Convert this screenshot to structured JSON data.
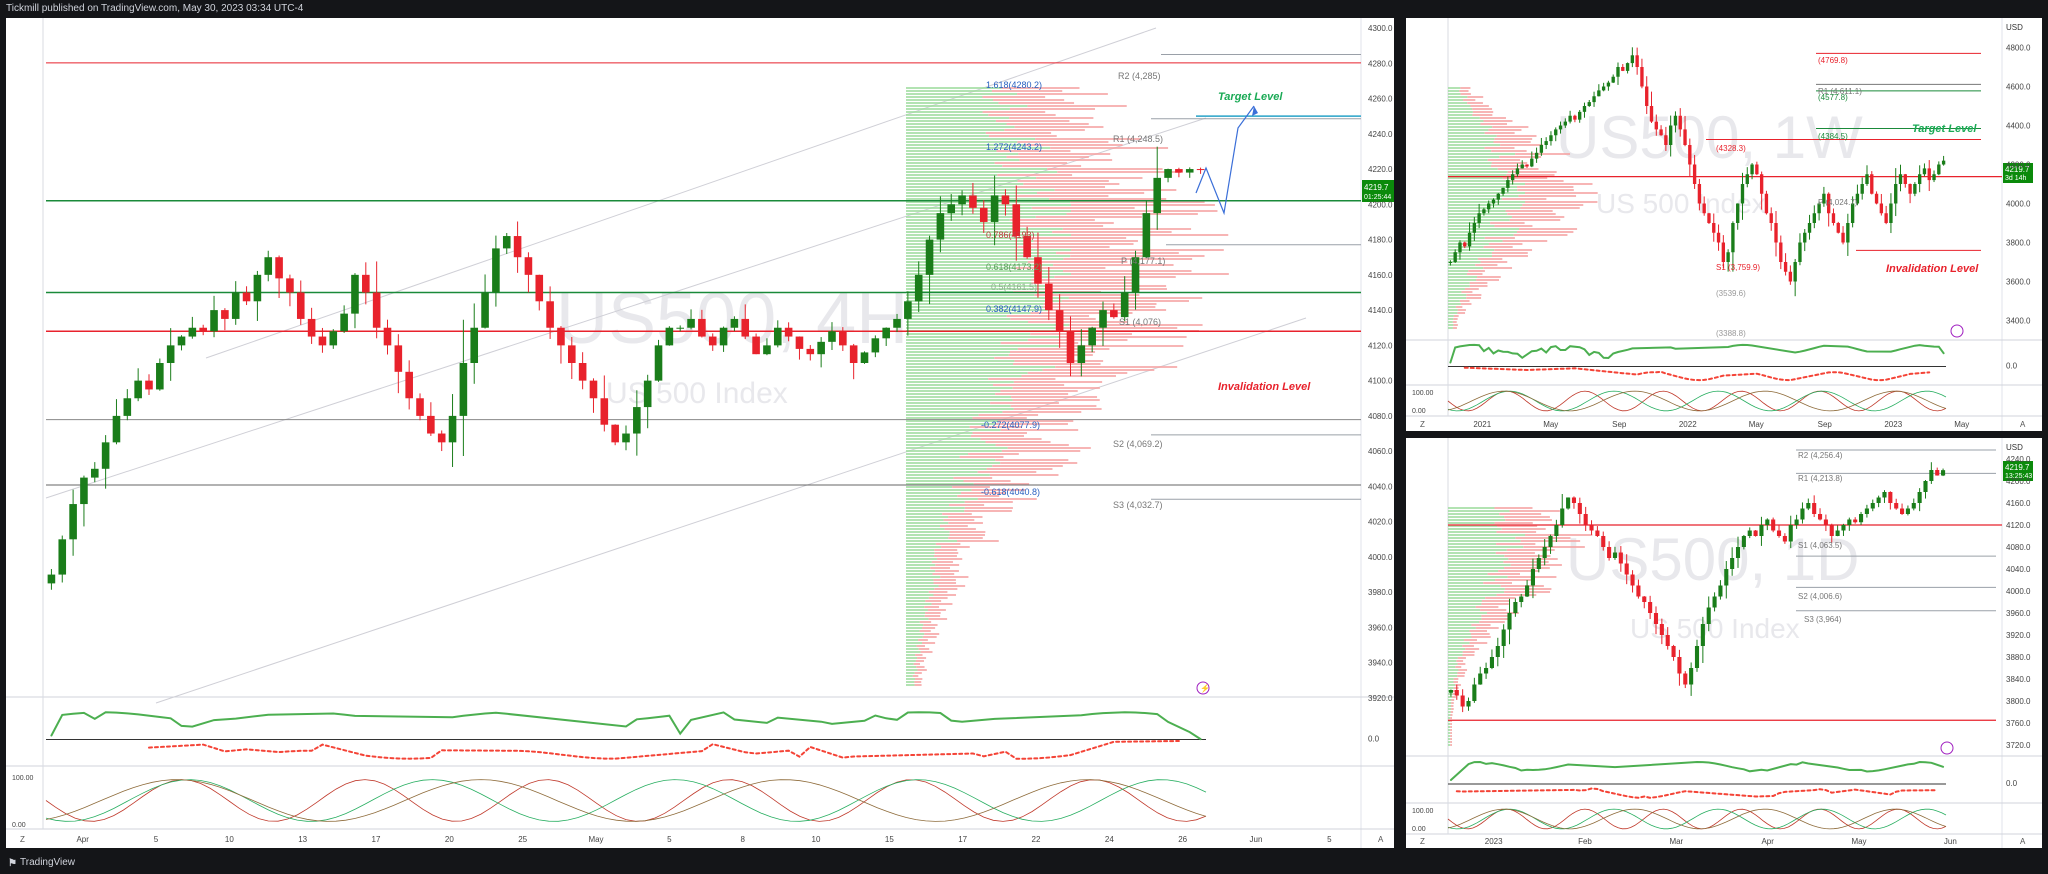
{
  "header": {
    "publish_line": "Tickmill published on TradingView.com, May 30, 2023 03:34 UTC-4"
  },
  "footer": {
    "logo_text": "TradingView"
  },
  "colors": {
    "up": "#1a7d1a",
    "down": "#e8222c",
    "pivot_line": "#1a8a3a",
    "invalid": "#e8222c",
    "target": "#1aaa55",
    "fib": "#2860c0",
    "osc_up": "#4caf50",
    "osc_down": "#f44336",
    "price_badge": "#0b8a0b"
  },
  "main_chart": {
    "watermark_symbol": "US500, 4H",
    "watermark_name": "US 500 Index",
    "labels": {
      "fib_1618": "1.618(4280.2)",
      "fib_1272": "1.272(4243.2)",
      "fib_0786": "0.786(4193)",
      "fib_0618": "0.618(4173.2)",
      "fib_05": "0.5(4161.5)",
      "fib_0382": "0.382(4147.9)",
      "fib_m0272": "-0.272(4077.9)",
      "fib_m0618": "-0.618(4040.8)",
      "r2": "R2 (4,285)",
      "r1": "R1 (4,248.5)",
      "p": "P (4,177.1)",
      "s1": "S1 (4,076)",
      "s2": "S2 (4,069.2)",
      "s3": "S3 (4,032.7)",
      "target": "Target Level",
      "invalidation": "Invalidation Level",
      "price": "4219.7",
      "timer": "01:25:44"
    },
    "y_ticks": [
      "4300.0",
      "4280.0",
      "4260.0",
      "4240.0",
      "4220.0",
      "4200.0",
      "4180.0",
      "4160.0",
      "4140.0",
      "4120.0",
      "4100.0",
      "4080.0",
      "4060.0",
      "4040.0",
      "4020.0",
      "4000.0",
      "3980.0",
      "3960.0",
      "3940.0",
      "3920.0"
    ],
    "x_ticks": [
      "Apr",
      "5",
      "10",
      "13",
      "17",
      "20",
      "25",
      "May",
      "5",
      "8",
      "10",
      "15",
      "17",
      "22",
      "24",
      "26",
      "Jun",
      "5"
    ],
    "osc1_ticks": [
      "50.0",
      "0.0"
    ],
    "osc2_ticks": [
      "100.00",
      "0.00"
    ]
  },
  "weekly_chart": {
    "watermark_symbol": "US500, 1W",
    "watermark_name": "US 500 Index",
    "currency": "USD",
    "labels": {
      "lvl_top": "(4769.8)",
      "r1": "R1 (4,611.1)",
      "lvl_4577": "(4577.8)",
      "lvl_4384": "(4384.5)",
      "lvl_4328": "(4328.3)",
      "p": "P (4,024.7)",
      "s1": "S1 (3,759.9)",
      "s2": "(3539.6)",
      "s3": "(3388.8)",
      "target": "Target Level",
      "invalidation": "Invalidation Level",
      "price": "4219.7",
      "timer": "3d 14h"
    },
    "y_ticks": [
      "4800.0",
      "4600.0",
      "4400.0",
      "4200.0",
      "4000.0",
      "3800.0",
      "3600.0",
      "3400.0"
    ],
    "x_ticks": [
      "2021",
      "May",
      "Sep",
      "2022",
      "May",
      "Sep",
      "2023",
      "May"
    ],
    "osc1_ticks": [
      "0.0"
    ],
    "osc2_ticks": [
      "100.00",
      "0.00"
    ]
  },
  "daily_chart": {
    "watermark_symbol": "US500, 1D",
    "watermark_name": "US 500 Index",
    "currency": "USD",
    "labels": {
      "r2": "R2 (4,256.4)",
      "r1": "R1 (4,213.8)",
      "s1": "S1 (4,063.5)",
      "s2": "S2 (4,006.6)",
      "s3": "S3 (3,964)",
      "price": "4219.7",
      "timer": "13:25:43"
    },
    "y_ticks": [
      "4240.0",
      "4200.0",
      "4160.0",
      "4120.0",
      "4080.0",
      "4040.0",
      "4000.0",
      "3960.0",
      "3920.0",
      "3880.0",
      "3840.0",
      "3800.0",
      "3760.0",
      "3720.0"
    ],
    "x_ticks": [
      "2023",
      "Feb",
      "Mar",
      "Apr",
      "May",
      "Jun"
    ],
    "osc1_ticks": [
      "0.0"
    ],
    "osc2_ticks": [
      "100.00",
      "0.00"
    ]
  },
  "chart_data": [
    {
      "type": "candlestick",
      "title": "US500, 4H",
      "ylim": [
        3920,
        4300
      ],
      "x_range": [
        "2023-03-28",
        "2023-06-06"
      ],
      "close_path": [
        3990,
        4010,
        4030,
        4045,
        4050,
        4065,
        4080,
        4090,
        4100,
        4095,
        4110,
        4120,
        4125,
        4130,
        4128,
        4140,
        4135,
        4150,
        4145,
        4160,
        4170,
        4158,
        4150,
        4135,
        4125,
        4120,
        4128,
        4138,
        4160,
        4150,
        4130,
        4120,
        4105,
        4090,
        4080,
        4070,
        4065,
        4080,
        4110,
        4130,
        4150,
        4175,
        4182,
        4170,
        4160,
        4145,
        4130,
        4120,
        4110,
        4100,
        4090,
        4075,
        4065,
        4070,
        4085,
        4100,
        4120,
        4130,
        4130,
        4135,
        4125,
        4120,
        4130,
        4135,
        4125,
        4115,
        4120,
        4130,
        4125,
        4118,
        4115,
        4122,
        4128,
        4120,
        4110,
        4116,
        4124,
        4130,
        4135,
        4145,
        4160,
        4180,
        4195,
        4200,
        4205,
        4198,
        4190,
        4205,
        4200,
        4182,
        4170,
        4155,
        4140,
        4128,
        4110,
        4120,
        4130,
        4140,
        4136,
        4150,
        4170,
        4195,
        4215,
        4220,
        4218,
        4220,
        4219.7
      ],
      "price": 4219.7,
      "levels": {
        "fib_1618": 4280.2,
        "fib_1272": 4243.2,
        "fib_0786": 4193,
        "fib_0618": 4173.2,
        "fib_05": 4161.5,
        "fib_0382": 4147.9,
        "fib_m0272": 4077.9,
        "fib_m0618": 4040.8,
        "r2": 4285,
        "r1": 4248.5,
        "p": 4177.1,
        "s1": 4076,
        "s2": 4069.2,
        "s3": 4032.7
      }
    },
    {
      "type": "candlestick",
      "title": "US500, 1W",
      "ylim": [
        3300,
        4900
      ],
      "x_range": [
        "2021-01",
        "2023-06"
      ],
      "close_path": [
        3700,
        3750,
        3800,
        3780,
        3850,
        3900,
        3950,
        3970,
        4000,
        4020,
        4050,
        4080,
        4120,
        4150,
        4180,
        4200,
        4190,
        4230,
        4260,
        4300,
        4320,
        4350,
        4380,
        4400,
        4420,
        4450,
        4430,
        4470,
        4500,
        4520,
        4550,
        4580,
        4600,
        4620,
        4650,
        4700,
        4680,
        4720,
        4760,
        4700,
        4600,
        4500,
        4420,
        4380,
        4350,
        4300,
        4400,
        4450,
        4380,
        4300,
        4200,
        4100,
        4000,
        3950,
        3900,
        3850,
        3800,
        3700,
        3750,
        3900,
        4000,
        4100,
        4150,
        4200,
        4150,
        4050,
        3950,
        3900,
        3800,
        3700,
        3650,
        3600,
        3700,
        3800,
        3850,
        3900,
        3950,
        4000,
        4050,
        3950,
        3900,
        3850,
        3800,
        3900,
        4000,
        4050,
        4100,
        4150,
        4050,
        4000,
        3950,
        3900,
        4000,
        4100,
        4150,
        4100,
        4050,
        4100,
        4150,
        4180,
        4120,
        4150,
        4200,
        4219.7
      ],
      "price": 4219.7,
      "levels": {
        "lvl_top": 4769.8,
        "r1": 4611.1,
        "lvl_4577": 4577.8,
        "lvl_4384": 4384.5,
        "lvl_4328": 4328.3,
        "p": 4024.7,
        "s1": 3759.9,
        "s2": 3539.6,
        "s3": 3388.8
      }
    },
    {
      "type": "candlestick",
      "title": "US500, 1D",
      "ylim": [
        3700,
        4260
      ],
      "x_range": [
        "2022-12-20",
        "2023-06-06"
      ],
      "close_path": [
        3820,
        3810,
        3790,
        3800,
        3830,
        3850,
        3860,
        3880,
        3900,
        3930,
        3960,
        3980,
        3990,
        4010,
        4040,
        4060,
        4080,
        4100,
        4120,
        4150,
        4170,
        4160,
        4140,
        4120,
        4110,
        4100,
        4080,
        4060,
        4070,
        4050,
        4030,
        4010,
        3990,
        3980,
        3960,
        3940,
        3920,
        3900,
        3880,
        3850,
        3830,
        3860,
        3900,
        3940,
        3970,
        3990,
        4010,
        4040,
        4060,
        4080,
        4100,
        4110,
        4100,
        4120,
        4130,
        4110,
        4100,
        4090,
        4120,
        4130,
        4150,
        4160,
        4140,
        4130,
        4120,
        4100,
        4110,
        4120,
        4130,
        4125,
        4140,
        4150,
        4160,
        4170,
        4180,
        4160,
        4150,
        4140,
        4150,
        4160,
        4180,
        4200,
        4220,
        4210,
        4219.7
      ],
      "price": 4219.7,
      "levels": {
        "r2": 4256.4,
        "r1": 4213.8,
        "s1": 4063.5,
        "s2": 4006.6,
        "s3": 3964
      }
    }
  ]
}
